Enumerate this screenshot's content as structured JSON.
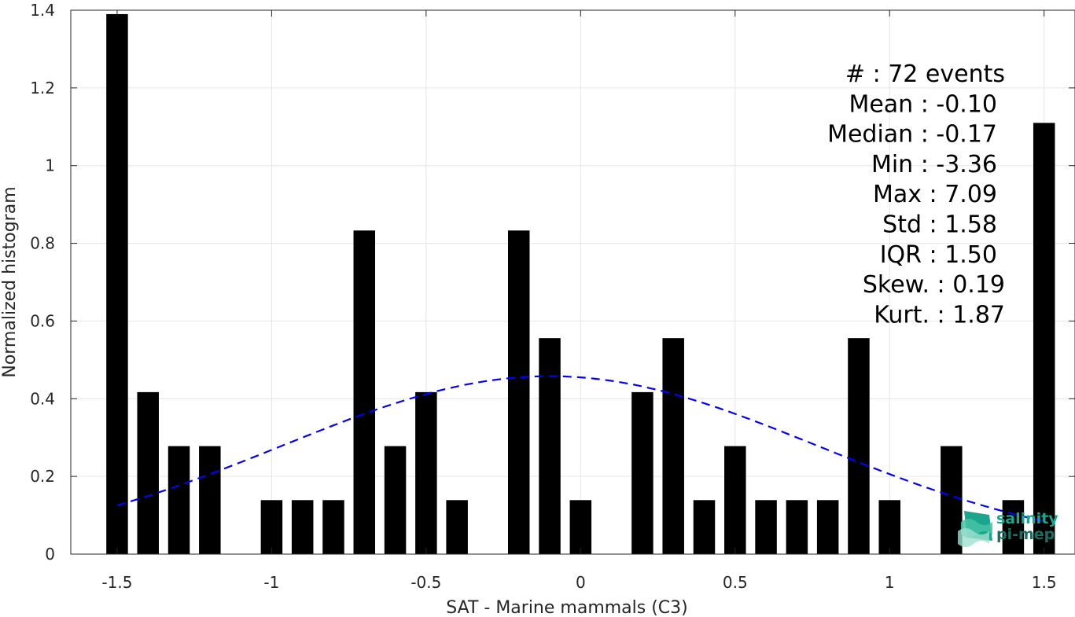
{
  "chart_data": {
    "type": "bar",
    "xlabel": "SAT - Marine mammals (C3)",
    "ylabel": "Normalized histogram",
    "xlim": [
      -1.65,
      1.6
    ],
    "ylim": [
      0,
      1.4
    ],
    "x_ticks": [
      -1.5,
      -1,
      -0.5,
      0,
      0.5,
      1,
      1.5
    ],
    "x_tick_labels": [
      "-1.5",
      "-1",
      "-0.5",
      "0",
      "0.5",
      "1",
      "1.5"
    ],
    "y_ticks": [
      0,
      0.2,
      0.4,
      0.6,
      0.8,
      1,
      1.2,
      1.4
    ],
    "y_tick_labels": [
      "0",
      "0.2",
      "0.4",
      "0.6",
      "0.8",
      "1",
      "1.2",
      "1.4"
    ],
    "grid": true,
    "bar_width": 0.07,
    "bar_color": "#000000",
    "bars": {
      "x": [
        -1.5,
        -1.4,
        -1.3,
        -1.2,
        -1.0,
        -0.9,
        -0.8,
        -0.7,
        -0.6,
        -0.5,
        -0.4,
        -0.2,
        -0.1,
        0.0,
        0.2,
        0.3,
        0.4,
        0.5,
        0.6,
        0.7,
        0.8,
        0.9,
        1.0,
        1.2,
        1.4,
        1.5
      ],
      "values": [
        1.39,
        0.417,
        0.278,
        0.278,
        0.139,
        0.139,
        0.139,
        0.833,
        0.278,
        0.417,
        0.139,
        0.833,
        0.556,
        0.139,
        0.417,
        0.556,
        0.139,
        0.278,
        0.139,
        0.139,
        0.139,
        0.556,
        0.139,
        0.278,
        0.139,
        1.11
      ]
    },
    "fit_curve": {
      "type": "gaussian",
      "mean": -0.1,
      "std": 0.87,
      "peak": 0.458,
      "x_range": [
        -1.5,
        1.5
      ],
      "color": "#0000ff",
      "style": "dashed"
    },
    "stats": [
      "#  : 72 events",
      "Mean : -0.10",
      "Median : -0.17",
      "Min : -3.36",
      "Max : 7.09",
      "Std : 1.58",
      "IQR : 1.50",
      "Skew. : 0.19",
      "Kurt. : 1.87"
    ]
  },
  "logo": {
    "line1": "salinity",
    "line2": "pi-mep",
    "color": "#1aa58c"
  }
}
